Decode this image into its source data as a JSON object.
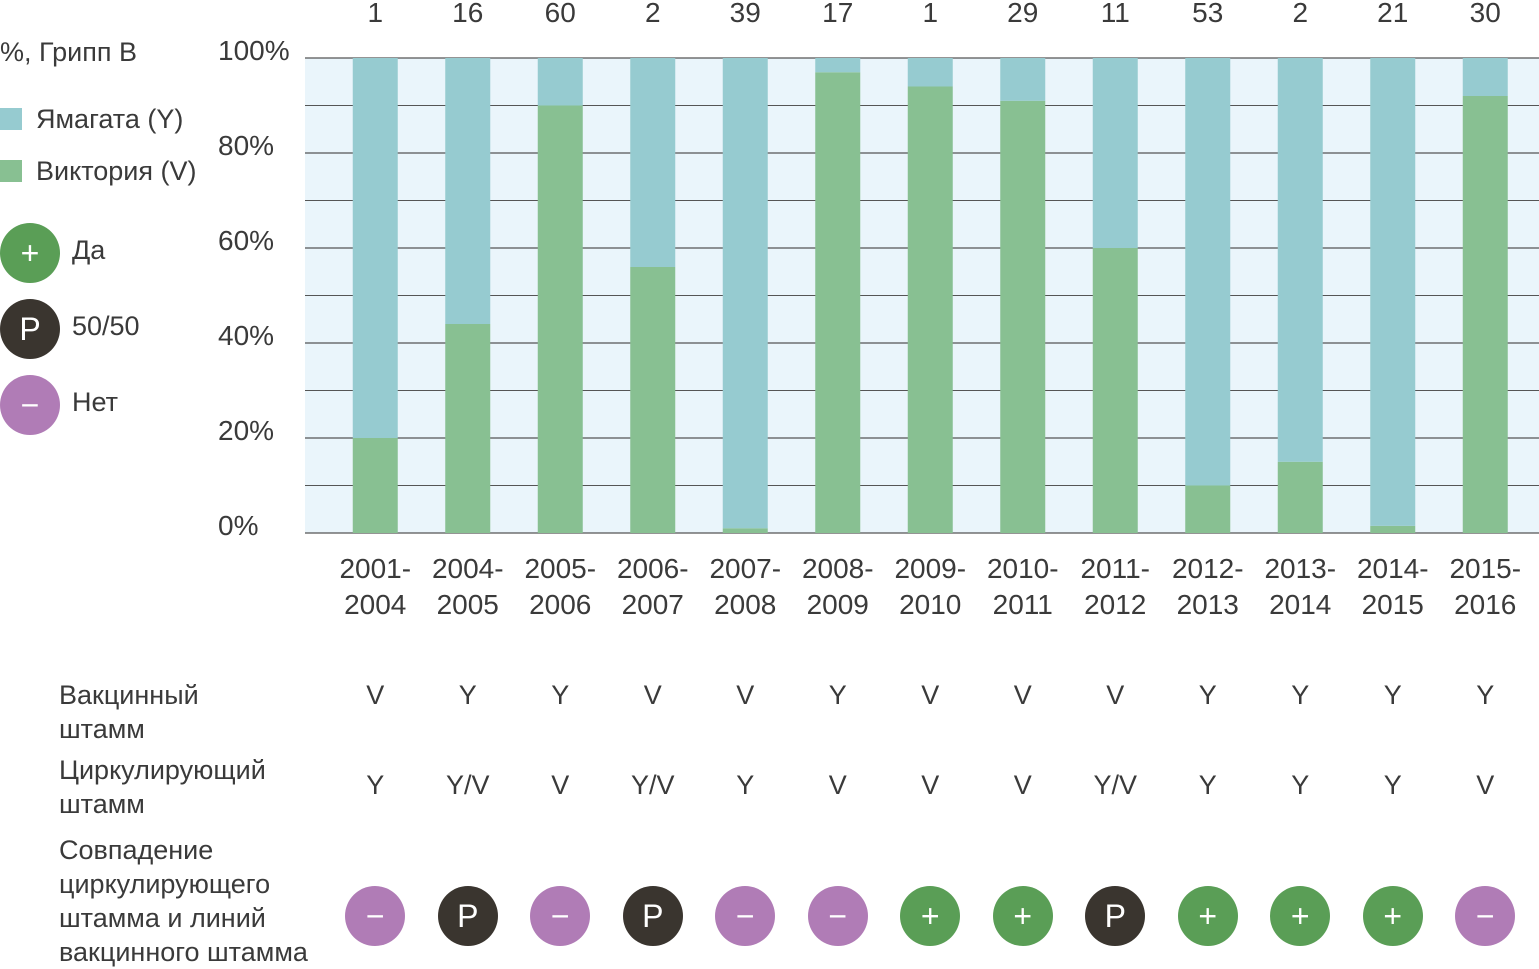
{
  "chart_data": {
    "type": "stacked_bar_100",
    "legend_title": "%, Грипп B",
    "categories": [
      "2001-2004",
      "2004-2005",
      "2005-2006",
      "2006-2007",
      "2007-2008",
      "2008-2009",
      "2009-2010",
      "2010-2011",
      "2011-2012",
      "2012-2013",
      "2013-2014",
      "2014-2015",
      "2015-2016"
    ],
    "counts": [
      "1",
      "16",
      "60",
      "2",
      "39",
      "17",
      "1",
      "29",
      "11",
      "53",
      "2",
      "21",
      "30"
    ],
    "series": [
      {
        "name": "Виктория (V)",
        "color": "#88c092",
        "values": [
          20,
          44,
          90,
          56,
          1,
          97,
          94,
          91,
          60,
          10,
          15,
          1.5,
          92
        ]
      },
      {
        "name": "Ямагата (Y)",
        "color": "#96cbd0",
        "values": [
          80,
          56,
          10,
          44,
          99,
          3,
          6,
          9,
          40,
          90,
          85,
          98.5,
          8
        ]
      }
    ],
    "ylim": [
      0,
      100
    ],
    "yticks": [
      {
        "value": 0,
        "label": "0%"
      },
      {
        "value": 20,
        "label": "20%"
      },
      {
        "value": 40,
        "label": "40%"
      },
      {
        "value": 60,
        "label": "60%"
      },
      {
        "value": 80,
        "label": "80%"
      },
      {
        "value": 100,
        "label": "100%"
      }
    ],
    "minor_yticks": [
      10,
      30,
      50,
      70,
      90
    ],
    "grid": true,
    "match_legend": [
      {
        "symbol": "+",
        "label": "Да",
        "color": "#5a9e56"
      },
      {
        "symbol": "P",
        "label": "50/50",
        "color": "#3a352f"
      },
      {
        "symbol": "−",
        "label": "Нет",
        "color": "#b07cb6"
      }
    ],
    "rows": [
      {
        "label": "Вакцинный штамм",
        "values": [
          "V",
          "Y",
          "Y",
          "V",
          "V",
          "Y",
          "V",
          "V",
          "V",
          "Y",
          "Y",
          "Y",
          "Y"
        ]
      },
      {
        "label": "Циркулирующий штамм",
        "values": [
          "Y",
          "Y/V",
          "V",
          "Y/V",
          "Y",
          "V",
          "V",
          "V",
          "Y/V",
          "Y",
          "Y",
          "Y",
          "V"
        ]
      },
      {
        "label": "Совпадение циркулирующего штамма и линий вакцинного штамма",
        "values": [
          "−",
          "P",
          "−",
          "P",
          "−",
          "−",
          "+",
          "+",
          "P",
          "+",
          "+",
          "+",
          "−"
        ]
      }
    ]
  }
}
